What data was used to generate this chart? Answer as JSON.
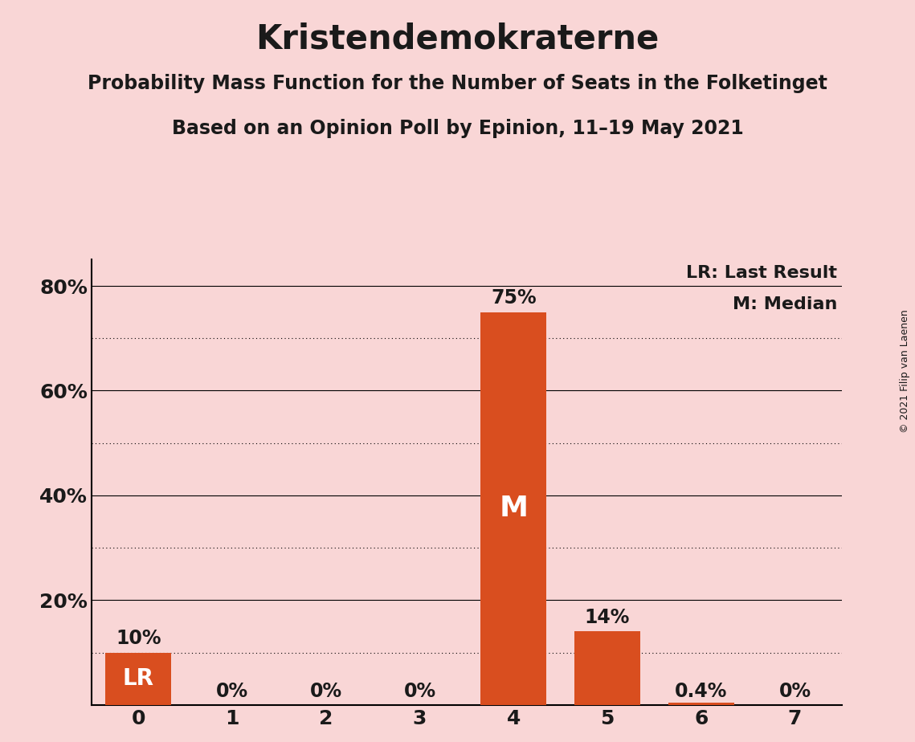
{
  "title": "Kristendemokraterne",
  "subtitle1": "Probability Mass Function for the Number of Seats in the Folketinget",
  "subtitle2": "Based on an Opinion Poll by Epinion, 11–19 May 2021",
  "copyright": "© 2021 Filip van Laenen",
  "categories": [
    0,
    1,
    2,
    3,
    4,
    5,
    6,
    7
  ],
  "values": [
    0.1,
    0.0,
    0.0,
    0.0,
    0.75,
    0.14,
    0.004,
    0.0
  ],
  "bar_color": "#D94E1F",
  "background_color": "#F9D6D6",
  "text_color": "#1a1a1a",
  "lr_bar": 0,
  "median_bar": 4,
  "lr_label": "LR",
  "median_label": "M",
  "legend_lr": "LR: Last Result",
  "legend_m": "M: Median",
  "ytick_positions": [
    0.0,
    0.2,
    0.4,
    0.6,
    0.8
  ],
  "ytick_labels": [
    "",
    "20%",
    "40%",
    "60%",
    "80%"
  ],
  "ylim": [
    0,
    0.85
  ],
  "bar_labels": [
    "10%",
    "0%",
    "0%",
    "0%",
    "75%",
    "14%",
    "0.4%",
    "0%"
  ],
  "solid_grid": [
    0.2,
    0.4,
    0.6,
    0.8
  ],
  "dotted_grid": [
    0.1,
    0.3,
    0.5,
    0.7
  ],
  "title_fontsize": 30,
  "subtitle_fontsize": 17,
  "tick_fontsize": 18,
  "bar_label_fontsize": 17,
  "legend_fontsize": 16
}
